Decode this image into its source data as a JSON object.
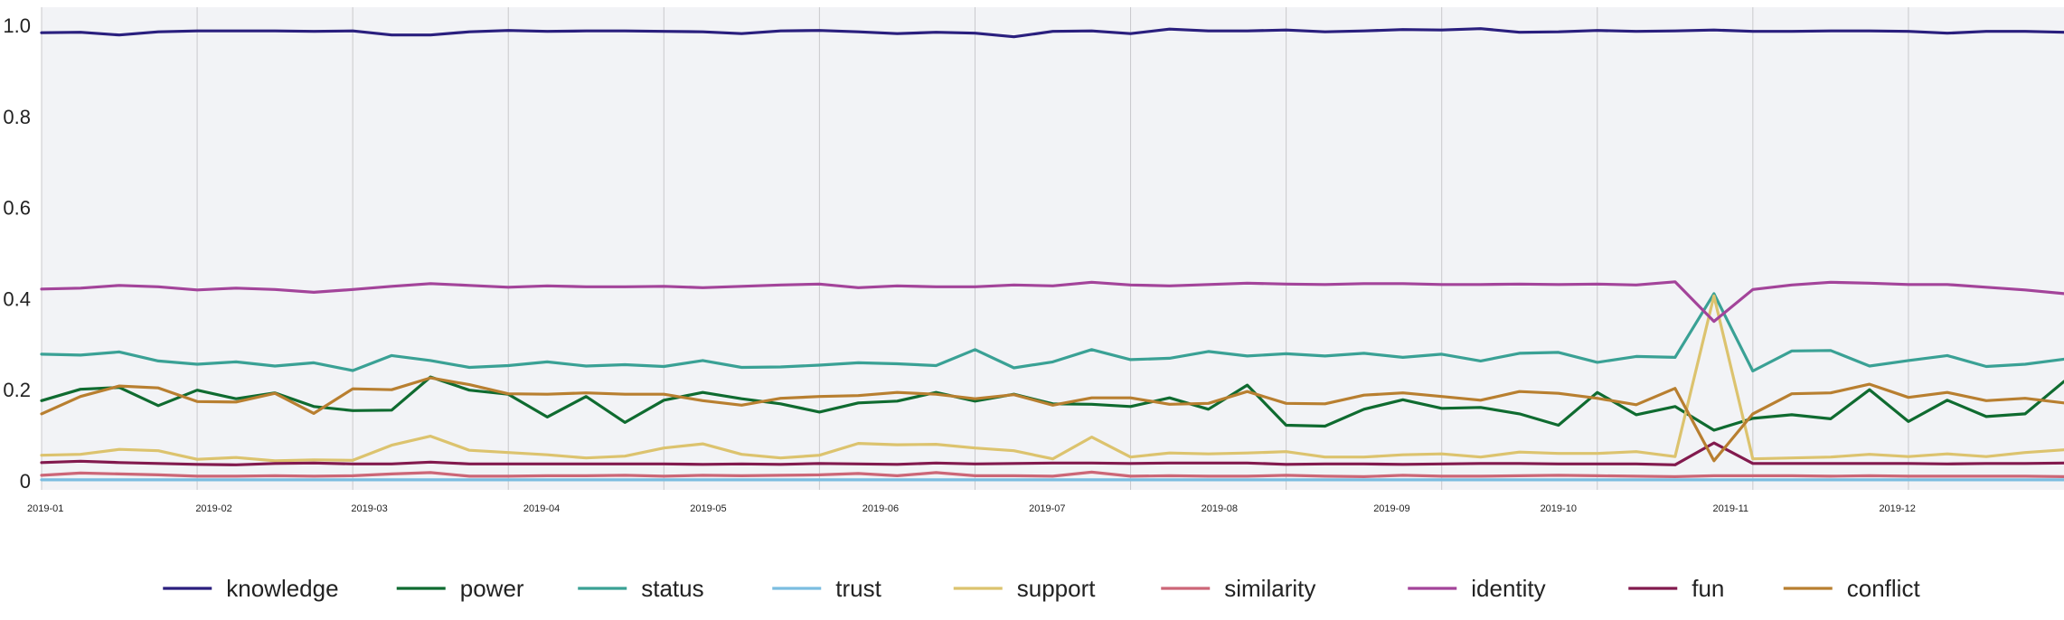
{
  "chart_data": {
    "type": "line",
    "title": "",
    "xlabel": "",
    "ylabel": "",
    "ylim": [
      -0.02,
      1.04
    ],
    "yticks": [
      0,
      0.2,
      0.4,
      0.6,
      0.8,
      1.0
    ],
    "ytick_labels": [
      "0",
      "0.2",
      "0.4",
      "0.6",
      "0.8",
      "1.0"
    ],
    "grid": true,
    "legend_position": "bottom",
    "x_start": "2019-01-01",
    "x_step_days": 7,
    "x_tick_labels": [
      "2019-01",
      "2019-02",
      "2019-03",
      "2019-04",
      "2019-05",
      "2019-06",
      "2019-07",
      "2019-08",
      "2019-09",
      "2019-10",
      "2019-11",
      "2019-12"
    ],
    "x_tick_dates": [
      "2019-01-01",
      "2019-02-01",
      "2019-03-01",
      "2019-04-01",
      "2019-05-01",
      "2019-06-01",
      "2019-07-01",
      "2019-08-01",
      "2019-09-01",
      "2019-10-01",
      "2019-11-01",
      "2019-12-01"
    ],
    "x_grid_dates": [
      "2019-01-01",
      "2019-01-29",
      "2019-02-26",
      "2019-03-26",
      "2019-04-23",
      "2019-05-21",
      "2019-06-18",
      "2019-07-16",
      "2019-08-13",
      "2019-09-10",
      "2019-10-08",
      "2019-11-05",
      "2019-12-03"
    ],
    "x_end": "2019-12-31",
    "series": [
      {
        "name": "knowledge",
        "color": "#2a1f7e",
        "values": [
          0.984,
          0.985,
          0.979,
          0.986,
          0.988,
          0.988,
          0.988,
          0.987,
          0.988,
          0.979,
          0.979,
          0.986,
          0.989,
          0.987,
          0.988,
          0.988,
          0.987,
          0.986,
          0.982,
          0.988,
          0.989,
          0.986,
          0.982,
          0.985,
          0.983,
          0.975,
          0.987,
          0.988,
          0.982,
          0.992,
          0.988,
          0.988,
          0.99,
          0.986,
          0.988,
          0.991,
          0.99,
          0.993,
          0.985,
          0.986,
          0.989,
          0.987,
          0.988,
          0.99,
          0.987,
          0.987,
          0.988,
          0.988,
          0.987,
          0.983,
          0.987,
          0.987,
          0.985
        ]
      },
      {
        "name": "power",
        "color": "#0f6b30",
        "values": [
          0.176,
          0.201,
          0.205,
          0.165,
          0.199,
          0.18,
          0.193,
          0.163,
          0.154,
          0.155,
          0.228,
          0.199,
          0.19,
          0.14,
          0.185,
          0.128,
          0.177,
          0.194,
          0.18,
          0.169,
          0.151,
          0.171,
          0.175,
          0.194,
          0.175,
          0.19,
          0.169,
          0.168,
          0.163,
          0.182,
          0.157,
          0.21,
          0.122,
          0.12,
          0.157,
          0.178,
          0.159,
          0.161,
          0.147,
          0.122,
          0.194,
          0.145,
          0.163,
          0.111,
          0.137,
          0.145,
          0.136,
          0.2,
          0.13,
          0.177,
          0.141,
          0.147,
          0.218
        ]
      },
      {
        "name": "status",
        "color": "#3aa195",
        "values": [
          0.278,
          0.276,
          0.283,
          0.263,
          0.256,
          0.261,
          0.252,
          0.259,
          0.242,
          0.275,
          0.264,
          0.249,
          0.253,
          0.261,
          0.252,
          0.255,
          0.251,
          0.264,
          0.249,
          0.25,
          0.254,
          0.259,
          0.257,
          0.253,
          0.288,
          0.248,
          0.261,
          0.288,
          0.266,
          0.269,
          0.284,
          0.274,
          0.279,
          0.274,
          0.28,
          0.271,
          0.278,
          0.263,
          0.28,
          0.282,
          0.26,
          0.273,
          0.271,
          0.411,
          0.241,
          0.285,
          0.286,
          0.252,
          0.264,
          0.275,
          0.251,
          0.256,
          0.267
        ]
      },
      {
        "name": "trust",
        "color": "#7bbde0",
        "values": [
          0.002,
          0.002,
          0.002,
          0.002,
          0.002,
          0.002,
          0.002,
          0.002,
          0.002,
          0.002,
          0.002,
          0.002,
          0.002,
          0.002,
          0.002,
          0.002,
          0.002,
          0.002,
          0.002,
          0.002,
          0.002,
          0.002,
          0.002,
          0.002,
          0.002,
          0.002,
          0.002,
          0.002,
          0.002,
          0.002,
          0.002,
          0.002,
          0.002,
          0.002,
          0.002,
          0.002,
          0.002,
          0.002,
          0.002,
          0.002,
          0.002,
          0.002,
          0.002,
          0.002,
          0.002,
          0.002,
          0.002,
          0.002,
          0.002,
          0.002,
          0.002,
          0.002,
          0.002
        ]
      },
      {
        "name": "support",
        "color": "#dcc36e",
        "values": [
          0.056,
          0.058,
          0.069,
          0.066,
          0.047,
          0.051,
          0.044,
          0.046,
          0.045,
          0.078,
          0.098,
          0.067,
          0.062,
          0.057,
          0.05,
          0.054,
          0.072,
          0.081,
          0.058,
          0.05,
          0.056,
          0.082,
          0.079,
          0.08,
          0.072,
          0.066,
          0.048,
          0.096,
          0.052,
          0.061,
          0.059,
          0.061,
          0.064,
          0.052,
          0.052,
          0.057,
          0.059,
          0.052,
          0.063,
          0.06,
          0.06,
          0.064,
          0.053,
          0.406,
          0.048,
          0.05,
          0.052,
          0.058,
          0.053,
          0.059,
          0.053,
          0.062,
          0.068
        ]
      },
      {
        "name": "similarity",
        "color": "#cc6677",
        "values": [
          0.012,
          0.017,
          0.015,
          0.013,
          0.01,
          0.01,
          0.011,
          0.01,
          0.011,
          0.015,
          0.018,
          0.01,
          0.01,
          0.011,
          0.011,
          0.012,
          0.01,
          0.012,
          0.011,
          0.012,
          0.013,
          0.016,
          0.011,
          0.018,
          0.011,
          0.011,
          0.01,
          0.019,
          0.01,
          0.011,
          0.01,
          0.01,
          0.012,
          0.01,
          0.009,
          0.012,
          0.01,
          0.01,
          0.011,
          0.012,
          0.011,
          0.01,
          0.009,
          0.011,
          0.011,
          0.011,
          0.01,
          0.011,
          0.01,
          0.01,
          0.01,
          0.01,
          0.009
        ]
      },
      {
        "name": "identity",
        "color": "#a3449a",
        "values": [
          0.421,
          0.423,
          0.429,
          0.426,
          0.419,
          0.423,
          0.42,
          0.414,
          0.42,
          0.427,
          0.433,
          0.429,
          0.425,
          0.428,
          0.426,
          0.426,
          0.427,
          0.424,
          0.427,
          0.43,
          0.432,
          0.424,
          0.428,
          0.426,
          0.426,
          0.43,
          0.428,
          0.436,
          0.43,
          0.428,
          0.431,
          0.434,
          0.432,
          0.431,
          0.433,
          0.433,
          0.431,
          0.431,
          0.432,
          0.431,
          0.432,
          0.43,
          0.437,
          0.35,
          0.42,
          0.43,
          0.436,
          0.434,
          0.431,
          0.431,
          0.425,
          0.419,
          0.411
        ]
      },
      {
        "name": "fun",
        "color": "#821a4e",
        "values": [
          0.04,
          0.043,
          0.04,
          0.038,
          0.036,
          0.035,
          0.038,
          0.039,
          0.037,
          0.037,
          0.041,
          0.037,
          0.037,
          0.037,
          0.037,
          0.037,
          0.037,
          0.036,
          0.037,
          0.036,
          0.038,
          0.037,
          0.036,
          0.039,
          0.037,
          0.038,
          0.039,
          0.039,
          0.038,
          0.039,
          0.039,
          0.039,
          0.036,
          0.037,
          0.037,
          0.036,
          0.037,
          0.038,
          0.038,
          0.037,
          0.037,
          0.037,
          0.035,
          0.083,
          0.038,
          0.038,
          0.038,
          0.038,
          0.038,
          0.037,
          0.038,
          0.038,
          0.039
        ]
      },
      {
        "name": "conflict",
        "color": "#b87f30",
        "values": [
          0.147,
          0.185,
          0.208,
          0.204,
          0.174,
          0.173,
          0.192,
          0.148,
          0.202,
          0.2,
          0.226,
          0.211,
          0.191,
          0.19,
          0.193,
          0.19,
          0.19,
          0.176,
          0.166,
          0.181,
          0.185,
          0.187,
          0.194,
          0.19,
          0.18,
          0.189,
          0.166,
          0.182,
          0.182,
          0.168,
          0.17,
          0.196,
          0.17,
          0.169,
          0.188,
          0.193,
          0.185,
          0.177,
          0.196,
          0.192,
          0.181,
          0.167,
          0.203,
          0.044,
          0.147,
          0.191,
          0.193,
          0.212,
          0.183,
          0.194,
          0.176,
          0.181,
          0.171
        ]
      }
    ]
  }
}
